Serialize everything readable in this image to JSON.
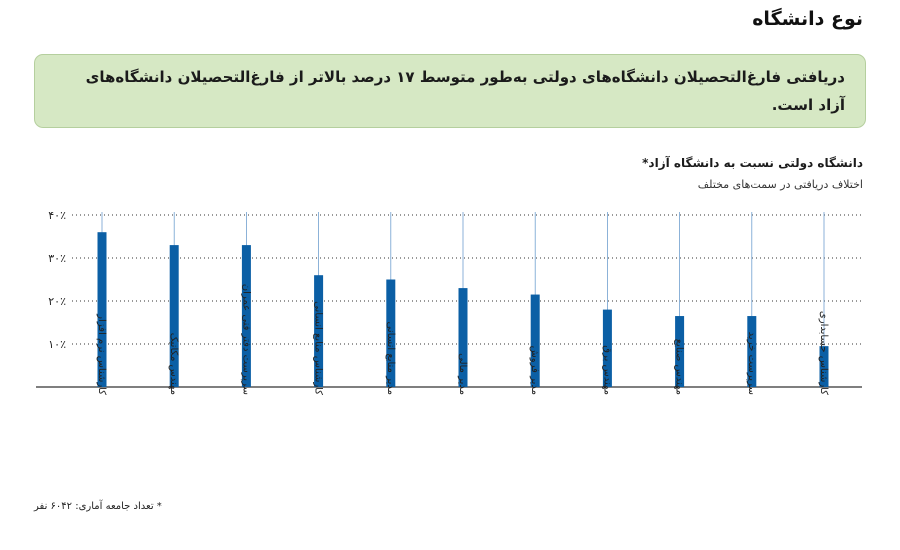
{
  "section_title": "نوع دانشگاه",
  "callout": "دریافتی فارغ‌التحصیلان دانشگاه‌های دولتی به‌طور متوسط ۱۷ درصد بالاتر از فارغ‌التحصیلان دانشگاه‌های آزاد است.",
  "footnote": "* تعداد جامعه آماری: ۶۰۴۲ نفر",
  "colors": {
    "bar": "#0b5fa5",
    "callout_bg": "#d6e8c4",
    "grid": "#333333"
  },
  "chart_data": {
    "type": "bar",
    "title": "دانشگاه دولتی نسبت به دانشگاه آزاد*",
    "subtitle": "اختلاف دریافتی در سمت‌های مختلف",
    "categories": [
      "کارشناس نرم افزار",
      "مهندس مکانیک",
      "سرپرست دفتر فنی عمران",
      "کارشناس منابع انسانی",
      "مدیر منابع انسانی",
      "مدیر مالی",
      "مدیر فروش",
      "مهندس برق",
      "مهندس صنایع",
      "سرپرست خرید",
      "کارشناس حسابداری"
    ],
    "values": [
      36,
      33,
      33,
      26,
      25,
      23,
      21.5,
      18,
      16.5,
      16.5,
      9.5
    ],
    "y_ticks": [
      "۱۰٪",
      "۲۰٪",
      "۳۰٪",
      "۴۰٪"
    ],
    "y_tick_values": [
      10,
      20,
      30,
      40
    ],
    "ylim": [
      0,
      40
    ],
    "xlabel": "",
    "ylabel": "",
    "grid": "dotted-horizontal"
  }
}
